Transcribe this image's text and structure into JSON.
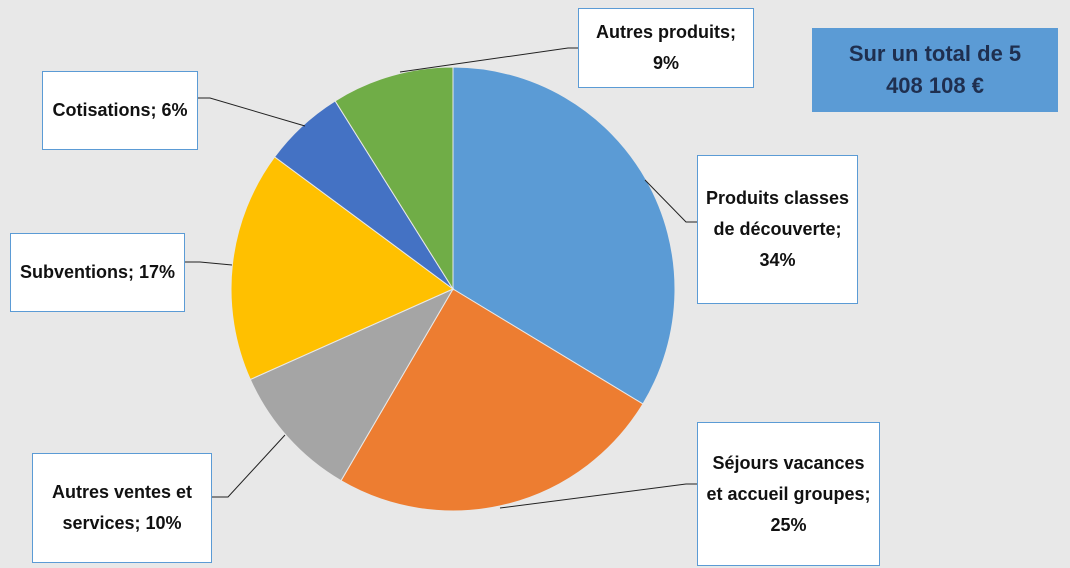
{
  "chart_data": {
    "type": "pie",
    "annotation": "Sur un total de 5 408 108 €",
    "categories": [
      "Produits classes de découverte",
      "Séjours vacances et accueil groupes",
      "Autres ventes et services",
      "Subventions",
      "Cotisations",
      "Autres produits"
    ],
    "values": [
      34,
      25,
      10,
      17,
      6,
      9
    ],
    "value_labels": [
      "Produits classes de découverte; 34%",
      "Séjours vacances et accueil groupes; 25%",
      "Autres ventes et services; 10%",
      "Subventions; 17%",
      "Cotisations; 6%",
      "Autres produits; 9%"
    ],
    "colors": [
      "#5b9bd5",
      "#ed7d31",
      "#a5a5a5",
      "#ffc000",
      "#4472c4",
      "#70ad47"
    ]
  }
}
